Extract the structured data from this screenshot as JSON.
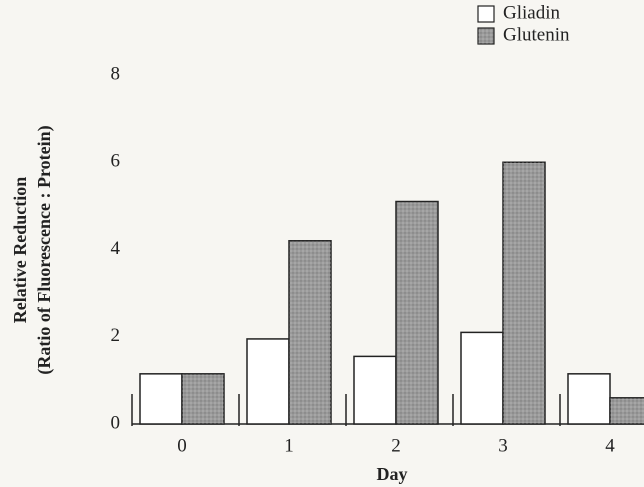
{
  "chart_data": {
    "type": "bar",
    "x_label": "Day",
    "y_label": [
      "Relative Reduction",
      "(Ratio of Fluorescence : Protein)"
    ],
    "categories": [
      "0",
      "1",
      "2",
      "3",
      "4"
    ],
    "series": [
      {
        "name": "Gliadin",
        "color": "#ffffff",
        "values": [
          1.15,
          1.95,
          1.55,
          2.1,
          1.15
        ]
      },
      {
        "name": "Glutenin",
        "color": "#9a9a9a",
        "values": [
          1.15,
          4.2,
          5.1,
          6.0,
          0.6
        ]
      }
    ],
    "ylim": [
      0,
      8
    ],
    "yticks": [
      0,
      2,
      4,
      6,
      8
    ]
  }
}
